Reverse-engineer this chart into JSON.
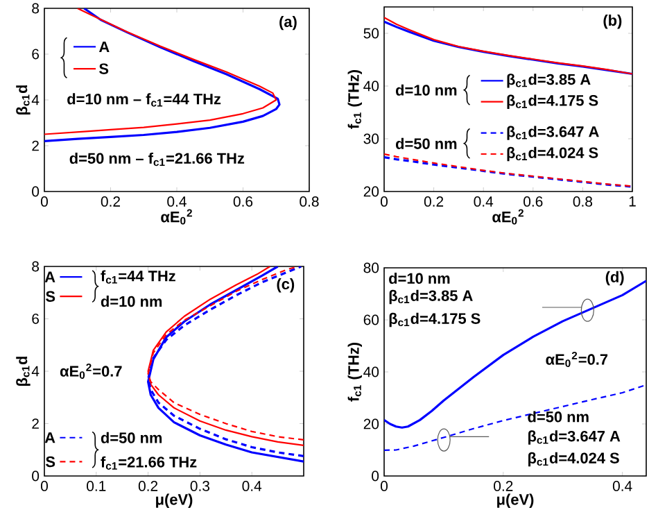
{
  "chart_data": [
    {
      "type": "line",
      "xlabel": "αE$_{0}$$^{2}$",
      "ylabel": "β$_{c1}$d",
      "xlim": [
        0,
        0.8
      ],
      "ylim": [
        0,
        8
      ],
      "xticks": [
        0,
        0.2,
        0.4,
        0.6,
        0.8
      ],
      "yticks": [
        0,
        2,
        4,
        6,
        8
      ],
      "legend": "top left",
      "annotations": [
        "(a)",
        "d=10 nm – f$_{c1}$=44 THz",
        "d=50 nm – f$_{c1}$=21.66 THz"
      ],
      "series": [
        {
          "name": "A",
          "color": "#0000ff",
          "line_style": "solid",
          "x": [
            0,
            0.1,
            0.2,
            0.3,
            0.4,
            0.5,
            0.6,
            0.66,
            0.7,
            0.71,
            0.705,
            0.65,
            0.55,
            0.45,
            0.35,
            0.25,
            0.17,
            0.12
          ],
          "values": [
            2.2,
            2.3,
            2.38,
            2.47,
            2.6,
            2.78,
            3.05,
            3.3,
            3.6,
            3.8,
            4.05,
            4.47,
            5.12,
            5.7,
            6.3,
            6.95,
            7.5,
            8.0
          ]
        },
        {
          "name": "S",
          "color": "#ff0000",
          "line_style": "solid",
          "x": [
            0,
            0.12,
            0.2,
            0.3,
            0.4,
            0.5,
            0.6,
            0.66,
            0.7,
            0.69,
            0.65,
            0.55,
            0.45,
            0.35,
            0.25,
            0.15,
            0.1
          ],
          "values": [
            2.5,
            2.62,
            2.7,
            2.8,
            2.95,
            3.12,
            3.4,
            3.65,
            4.0,
            4.3,
            4.6,
            5.22,
            5.77,
            6.35,
            6.97,
            7.65,
            8.0
          ]
        }
      ]
    },
    {
      "type": "line",
      "xlabel": "αE$_{0}$$^{2}$",
      "ylabel": "f$_{c1}$ (THz)",
      "xlim": [
        0,
        1
      ],
      "ylim": [
        20,
        55
      ],
      "xticks": [
        0,
        0.2,
        0.4,
        0.6,
        0.8,
        1
      ],
      "yticks": [
        20,
        30,
        40,
        50
      ],
      "legend": "right",
      "annotations": [
        "(b)",
        "d=10 nm",
        "d=50 nm"
      ],
      "x": [
        0,
        0.05,
        0.1,
        0.2,
        0.3,
        0.4,
        0.5,
        0.6,
        0.7,
        0.8,
        0.9,
        1
      ],
      "series": [
        {
          "name": "β$_{c1}$d=3.85 A",
          "color": "#0000ff",
          "line_style": "solid",
          "values": [
            52.2,
            51.2,
            50.3,
            48.6,
            47.4,
            46.5,
            45.7,
            45.0,
            44.3,
            43.7,
            43.0,
            42.3
          ]
        },
        {
          "name": "β$_{c1}$d=4.175 S",
          "color": "#ff0000",
          "line_style": "solid",
          "values": [
            53.0,
            51.7,
            50.7,
            48.8,
            47.5,
            46.6,
            45.8,
            45.1,
            44.4,
            43.8,
            43.1,
            42.3
          ]
        },
        {
          "name": "β$_{c1}$d=3.647 A",
          "color": "#0000ff",
          "line_style": "dashed",
          "values": [
            26.5,
            26.1,
            25.8,
            25.1,
            24.5,
            23.9,
            23.3,
            22.8,
            22.3,
            21.8,
            21.3,
            20.9
          ]
        },
        {
          "name": "β$_{c1}$d=4.024 S",
          "color": "#ff0000",
          "line_style": "dashed",
          "values": [
            27.1,
            26.6,
            26.2,
            25.4,
            24.7,
            24.0,
            23.4,
            22.9,
            22.4,
            21.9,
            21.4,
            21.0
          ]
        }
      ]
    },
    {
      "type": "line",
      "xlabel": "μ(eV)",
      "ylabel": "β$_{c1}$d",
      "xlim": [
        0,
        0.5
      ],
      "ylim": [
        0,
        8
      ],
      "xticks": [
        0,
        0.1,
        0.2,
        0.3,
        0.4
      ],
      "yticks": [
        0,
        2,
        4,
        6,
        8
      ],
      "legend": "left",
      "annotations": [
        "(c)",
        "f$_{c1}$=44 THz",
        "d=10 nm",
        "αE$_{0}$$^{2}$=0.7",
        "d=50 nm",
        "f$_{c1}$=21.66 THz"
      ],
      "series": [
        {
          "name": "A",
          "color": "#0000ff",
          "line_style": "solid",
          "x": [
            0.5,
            0.4,
            0.35,
            0.3,
            0.25,
            0.22,
            0.205,
            0.2,
            0.21,
            0.235,
            0.27,
            0.32,
            0.37,
            0.42,
            0.45
          ],
          "values": [
            0.55,
            0.9,
            1.2,
            1.55,
            2.05,
            2.6,
            3.1,
            3.6,
            4.45,
            5.3,
            5.9,
            6.55,
            7.1,
            7.65,
            8.0
          ]
        },
        {
          "name": "S",
          "color": "#ff0000",
          "line_style": "solid",
          "x": [
            0.5,
            0.45,
            0.4,
            0.35,
            0.3,
            0.25,
            0.22,
            0.205,
            0.2,
            0.21,
            0.235,
            0.27,
            0.32,
            0.37,
            0.41,
            0.435
          ],
          "values": [
            1.17,
            1.3,
            1.5,
            1.75,
            2.1,
            2.6,
            3.1,
            3.5,
            4.0,
            4.8,
            5.5,
            6.1,
            6.75,
            7.3,
            7.7,
            8.0
          ]
        },
        {
          "name": "A",
          "color": "#0000ff",
          "line_style": "dashed",
          "x": [
            0.5,
            0.45,
            0.4,
            0.35,
            0.3,
            0.25,
            0.22,
            0.205,
            0.2,
            0.21,
            0.235,
            0.27,
            0.32,
            0.37,
            0.42,
            0.47,
            0.495
          ],
          "values": [
            0.76,
            0.9,
            1.1,
            1.4,
            1.8,
            2.3,
            2.8,
            3.3,
            3.7,
            4.5,
            5.2,
            5.75,
            6.35,
            6.9,
            7.4,
            7.8,
            8.0
          ]
        },
        {
          "name": "S",
          "color": "#ff0000",
          "line_style": "dashed",
          "x": [
            0.5,
            0.45,
            0.4,
            0.35,
            0.3,
            0.25,
            0.22,
            0.205,
            0.2,
            0.21,
            0.235,
            0.27,
            0.32,
            0.37,
            0.42,
            0.47,
            0.49
          ],
          "values": [
            1.38,
            1.5,
            1.7,
            2.0,
            2.35,
            2.8,
            3.3,
            3.6,
            3.9,
            4.7,
            5.4,
            5.95,
            6.5,
            7.05,
            7.5,
            7.9,
            8.0
          ]
        }
      ]
    },
    {
      "type": "line",
      "xlabel": "μ(eV)",
      "ylabel": "f$_{c1}$ (THz)",
      "xlim": [
        0,
        0.44
      ],
      "ylim": [
        0,
        80
      ],
      "xticks": [
        0,
        0.2,
        0.4
      ],
      "yticks": [
        0,
        20,
        40,
        60,
        80
      ],
      "annotations": [
        "d=10 nm",
        "β$_{c1}$d=3.85 A",
        "β$_{c1}$d=4.175 S",
        "(d)",
        "αE$_{0}$$^{2}$=0.7",
        "d=50 nm",
        "β$_{c1}$d=3.647 A",
        "β$_{c1}$d=4.024 S"
      ],
      "series": [
        {
          "color": "#0000ff",
          "line_style": "solid",
          "x": [
            0,
            0.01,
            0.02,
            0.03,
            0.04,
            0.06,
            0.08,
            0.1,
            0.15,
            0.2,
            0.25,
            0.3,
            0.35,
            0.4,
            0.44
          ],
          "values": [
            21.5,
            20,
            19,
            18.6,
            19,
            21.5,
            25,
            29,
            38,
            46.5,
            53.5,
            59.5,
            64.5,
            69.5,
            75
          ]
        },
        {
          "color": "#0000ff",
          "line_style": "dashed",
          "x": [
            0,
            0.02,
            0.05,
            0.1,
            0.15,
            0.2,
            0.25,
            0.3,
            0.35,
            0.4,
            0.44
          ],
          "values": [
            9.9,
            10,
            11.5,
            14.8,
            18.2,
            21.3,
            24,
            26.7,
            29.4,
            32,
            35
          ]
        }
      ]
    }
  ]
}
